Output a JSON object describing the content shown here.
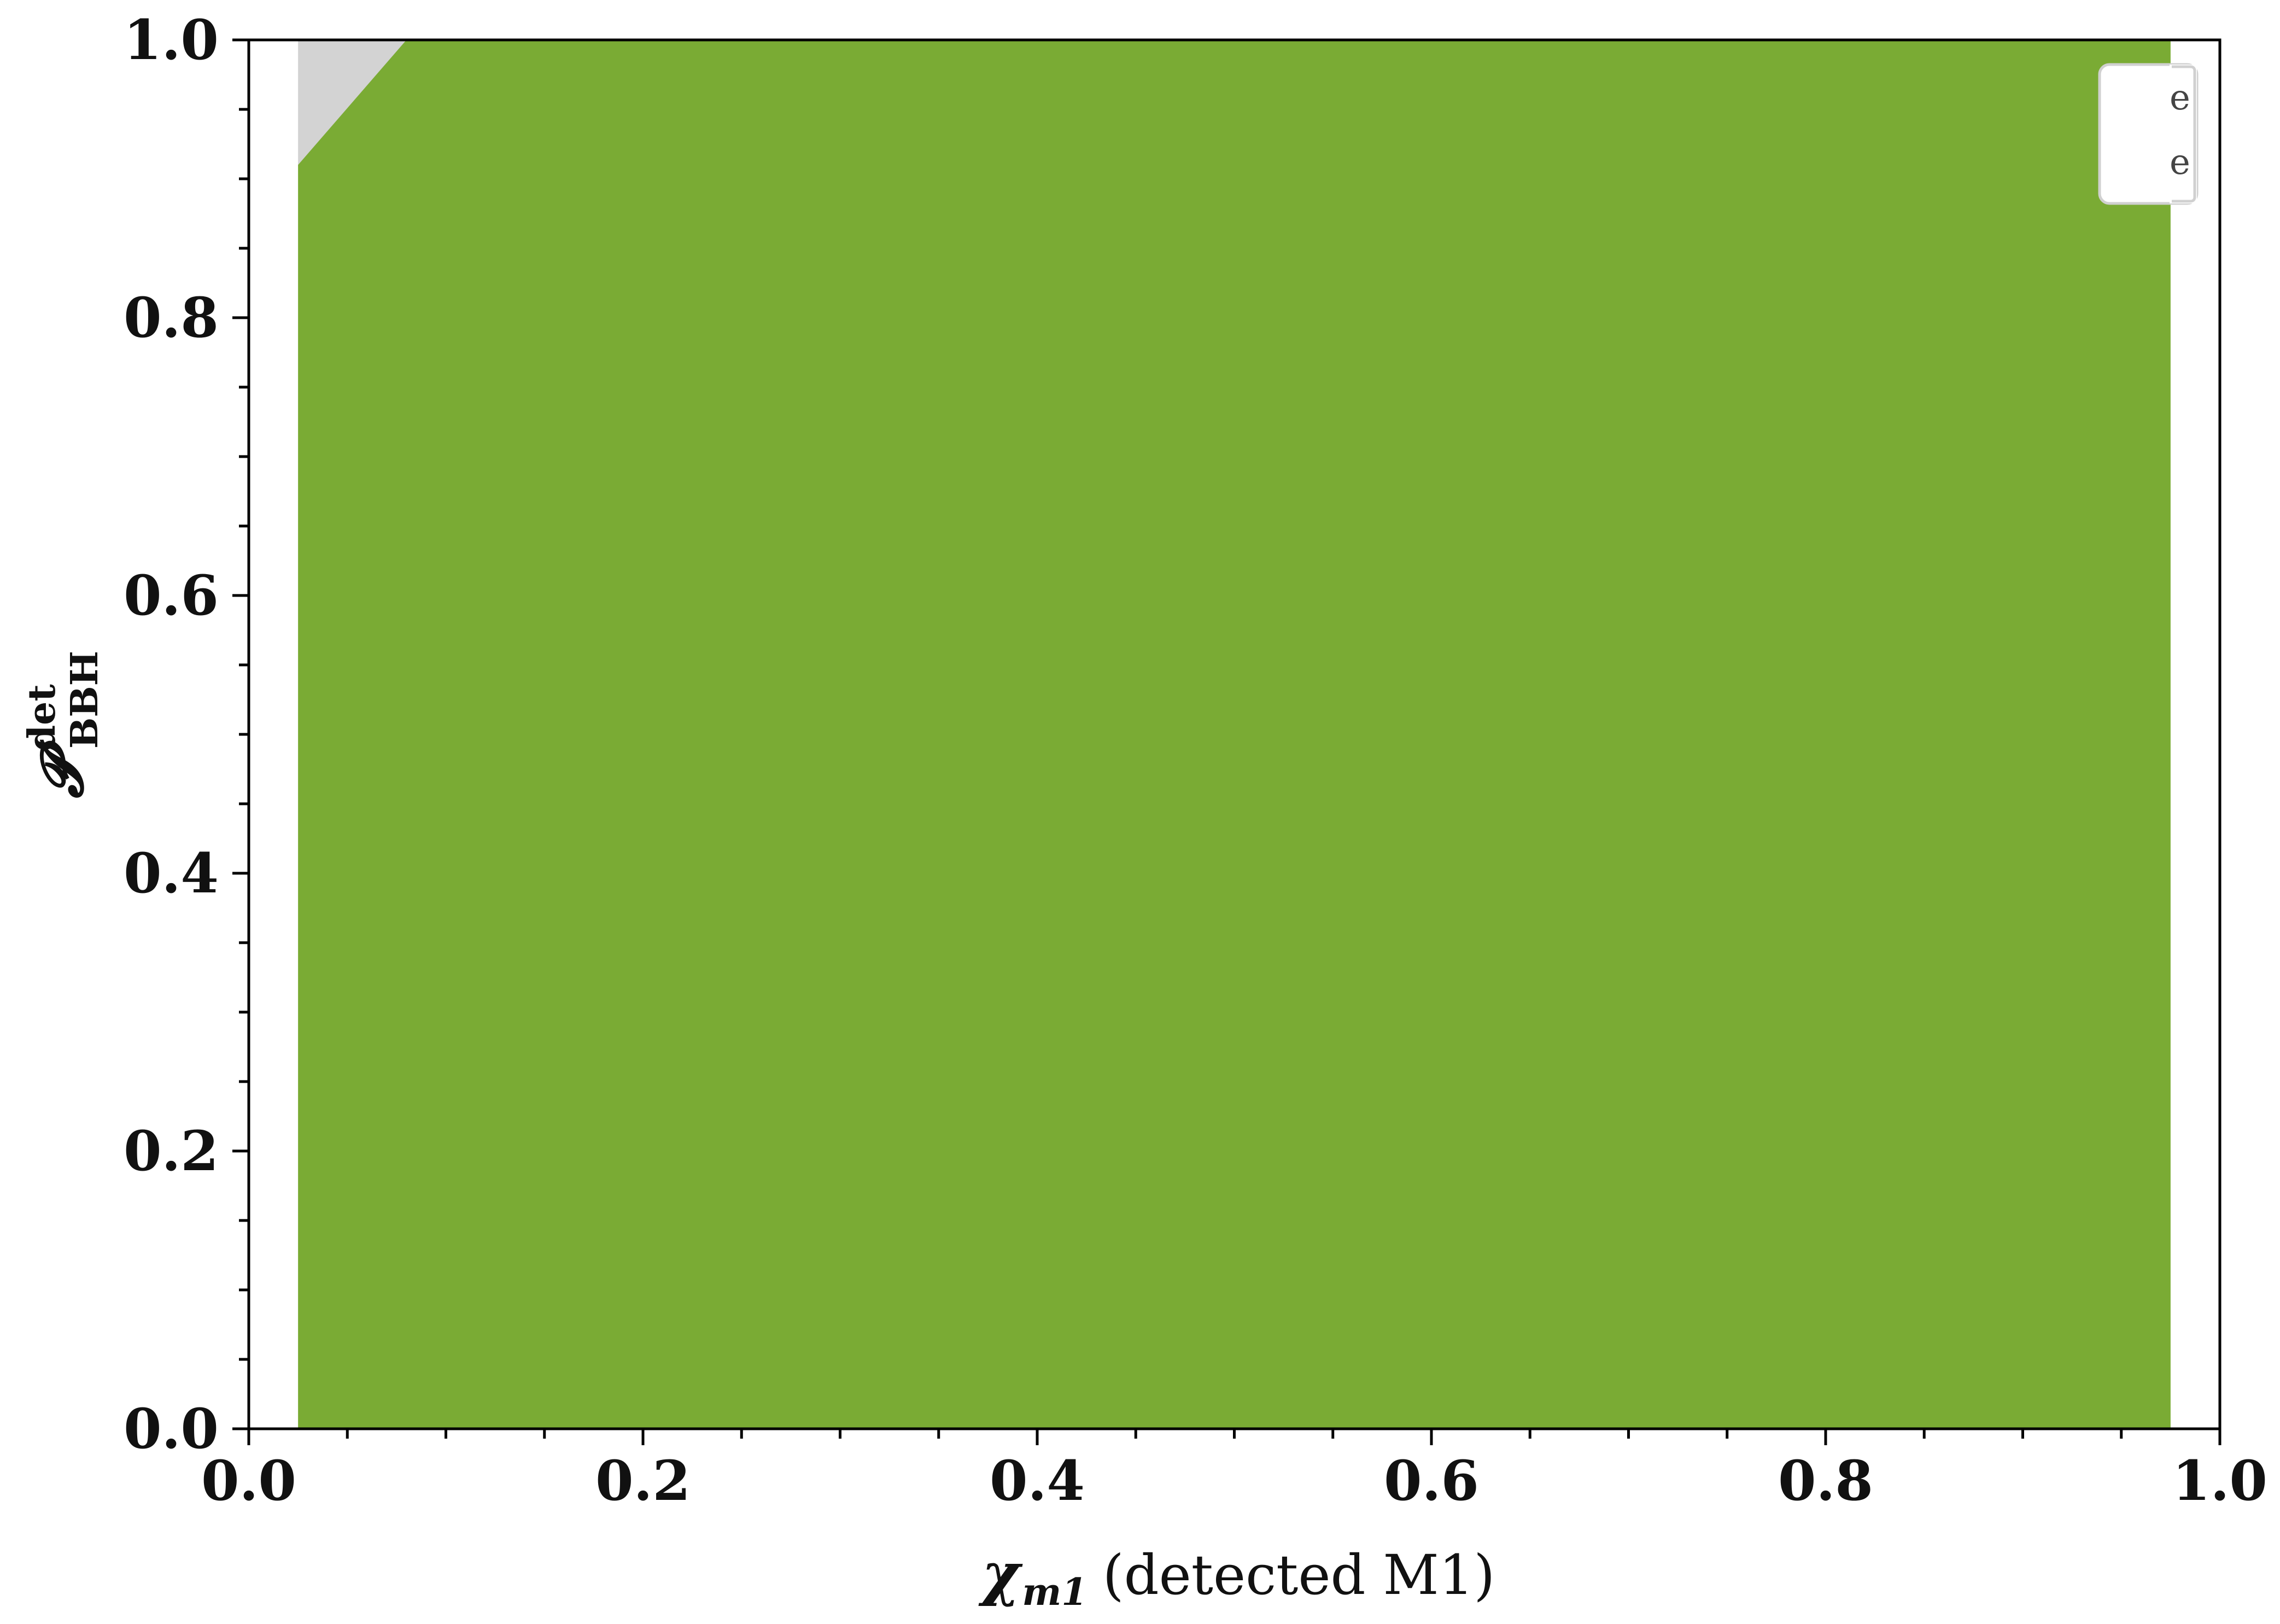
{
  "chart_data": {
    "type": "area",
    "xlabel": {
      "symbol": "χ",
      "subscript": "m1",
      "text": "(detected M1)"
    },
    "ylabel": {
      "symbol": "𝓟",
      "superscript": "det",
      "subscript": "BBH"
    },
    "xlim": [
      0.0,
      1.0
    ],
    "ylim": [
      0.0,
      1.0
    ],
    "x_ticks": [
      "0.0",
      "0.2",
      "0.4",
      "0.6",
      "0.8",
      "1.0"
    ],
    "y_ticks": [
      "0.0",
      "0.2",
      "0.4",
      "0.6",
      "0.8",
      "1.0"
    ],
    "x_tick_values": [
      0.0,
      0.2,
      0.4,
      0.6,
      0.8,
      1.0
    ],
    "y_tick_values": [
      0.0,
      0.2,
      0.4,
      0.6,
      0.8,
      1.0
    ],
    "x_minor_step": 0.05,
    "y_minor_step": 0.05,
    "grid": false,
    "legend_placement": "top-right",
    "series": [
      {
        "fill": "#d3d3d3",
        "x": [
          0.025,
          0.025,
          0.08,
          0.975
        ],
        "y": [
          0.91,
          1.0,
          1.0,
          1.0
        ]
      },
      {
        "fill": "#7aab34",
        "x": [
          0.025,
          0.08,
          0.975
        ],
        "y": [
          0.91,
          1.0,
          1.0
        ],
        "x_range": [
          0.025,
          0.975
        ]
      }
    ]
  }
}
